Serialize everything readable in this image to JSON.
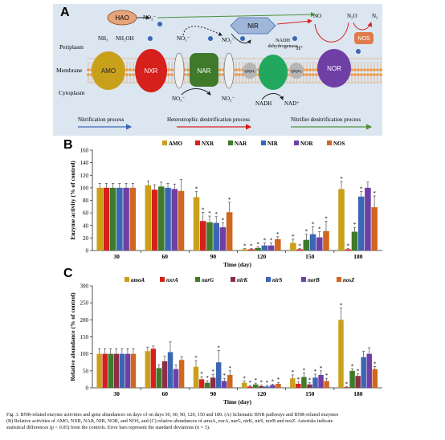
{
  "colors": {
    "AMO": "#c9a01a",
    "NXR": "#d6201c",
    "NAR": "#3f7a2b",
    "NIR": "#3a66b5",
    "NOR": "#6f3fa5",
    "NOS": "#d0661f",
    "panelA_bg": "#dbe6f1",
    "membrane": "#f3a35b"
  },
  "panelA": {
    "label": "A",
    "periplasm": "Periplasm",
    "membrane": "Membrane",
    "cytoplasm": "Cytoplasm",
    "enzymes": {
      "AMO": "AMO",
      "NXR": "NXR",
      "NAR": "NAR",
      "NIR": "NIR",
      "NOR": "NOR",
      "NOS": "NOS",
      "HAO": "HAO",
      "QH2_1": "Q/QH₂",
      "QH2_2": "Q/QH₂"
    },
    "species": {
      "NH3": "NH₃",
      "NH2OH": "NH₂OH",
      "NO2_top": "NO₂⁻",
      "NO3": "NO₃⁻",
      "NO3_cyt": "NO₃⁻",
      "NO2_mid": "NO₂⁻",
      "NO2_cyt": "NO₂⁻",
      "NO": "NO",
      "N2O": "N₂O",
      "N2": "N₂",
      "NADH": "NADH",
      "NAD": "NAD⁺",
      "H": "H⁺",
      "e": "e"
    },
    "nadh_dehydrogenase": "NADH\ndehydrogenase",
    "processes": [
      {
        "label": "Nitrification process",
        "color": "#3a66b5"
      },
      {
        "label": "Heterotrophic denitrification process",
        "color": "#d6201c"
      },
      {
        "label": "Nitrifier denitrification process",
        "color": "#4f8f3a"
      }
    ]
  },
  "panelB": {
    "label": "B"
  },
  "panelC": {
    "label": "C"
  },
  "chart_data": [
    {
      "type": "bar",
      "title": "",
      "xlabel": "Time (day)",
      "ylabel": "Enzyme activity (% of control)",
      "ylim": [
        0,
        160
      ],
      "yticks": [
        0,
        20,
        40,
        60,
        80,
        100,
        120,
        140,
        160
      ],
      "categories": [
        "30",
        "60",
        "90",
        "120",
        "150",
        "180"
      ],
      "legend_position": "top",
      "series": [
        {
          "name": "AMO",
          "color": "#c9a01a",
          "values": [
            100,
            104,
            85,
            2,
            12,
            98
          ],
          "errors": [
            7,
            7,
            9,
            1,
            6,
            12
          ],
          "sig": [
            false,
            false,
            true,
            true,
            true,
            true
          ]
        },
        {
          "name": "NXR",
          "color": "#d6201c",
          "values": [
            100,
            97,
            47,
            2,
            2,
            2
          ],
          "errors": [
            7,
            8,
            14,
            1,
            1,
            1
          ],
          "sig": [
            false,
            false,
            true,
            true,
            true,
            true
          ]
        },
        {
          "name": "NAR",
          "color": "#3f7a2b",
          "values": [
            100,
            102,
            45,
            4,
            17,
            30
          ],
          "errors": [
            7,
            7,
            10,
            2,
            9,
            7
          ],
          "sig": [
            false,
            false,
            true,
            true,
            true,
            true
          ]
        },
        {
          "name": "NIR",
          "color": "#3a66b5",
          "values": [
            100,
            100,
            44,
            8,
            26,
            86
          ],
          "errors": [
            7,
            7,
            10,
            4,
            12,
            8
          ],
          "sig": [
            false,
            false,
            true,
            true,
            true,
            true
          ]
        },
        {
          "name": "NOR",
          "color": "#6f3fa5",
          "values": [
            100,
            98,
            37,
            8,
            21,
            100
          ],
          "errors": [
            7,
            8,
            7,
            4,
            9,
            9
          ],
          "sig": [
            false,
            false,
            true,
            true,
            true,
            false
          ]
        },
        {
          "name": "NOS",
          "color": "#d0661f",
          "values": [
            100,
            95,
            61,
            18,
            31,
            69
          ],
          "errors": [
            7,
            18,
            16,
            4,
            16,
            18
          ],
          "sig": [
            false,
            false,
            true,
            true,
            true,
            true
          ]
        }
      ]
    },
    {
      "type": "bar",
      "title": "",
      "xlabel": "Time (day)",
      "ylabel": "Relative abundance (% of control)",
      "ylim": [
        0,
        300
      ],
      "yticks": [
        0,
        50,
        100,
        150,
        200,
        250,
        300
      ],
      "categories": [
        "30",
        "60",
        "90",
        "120",
        "150",
        "180"
      ],
      "legend_position": "top",
      "series": [
        {
          "name": "amoA",
          "color": "#c9a01a",
          "values": [
            100,
            108,
            62,
            15,
            28,
            200
          ],
          "errors": [
            15,
            12,
            18,
            5,
            10,
            35
          ],
          "sig": [
            false,
            false,
            true,
            true,
            true,
            true
          ]
        },
        {
          "name": "nxrA",
          "color": "#d6201c",
          "values": [
            100,
            115,
            25,
            4,
            12,
            2
          ],
          "errors": [
            15,
            8,
            8,
            3,
            5,
            1
          ],
          "sig": [
            false,
            false,
            true,
            true,
            true,
            true
          ]
        },
        {
          "name": "narG",
          "color": "#3f7a2b",
          "values": [
            100,
            58,
            15,
            10,
            32,
            50
          ],
          "errors": [
            15,
            10,
            6,
            4,
            12,
            6
          ],
          "sig": [
            false,
            false,
            true,
            true,
            true,
            true
          ]
        },
        {
          "name": "nirK",
          "color": "#8a2f45",
          "values": [
            100,
            78,
            30,
            5,
            10,
            35
          ],
          "errors": [
            15,
            15,
            10,
            3,
            5,
            6
          ],
          "sig": [
            false,
            false,
            true,
            true,
            true,
            true
          ]
        },
        {
          "name": "nirS",
          "color": "#3a66b5",
          "values": [
            100,
            105,
            75,
            4,
            30,
            90
          ],
          "errors": [
            15,
            30,
            35,
            3,
            10,
            18
          ],
          "sig": [
            false,
            false,
            true,
            true,
            true,
            false
          ]
        },
        {
          "name": "norB",
          "color": "#6f3fa5",
          "values": [
            100,
            55,
            20,
            8,
            38,
            100
          ],
          "errors": [
            15,
            12,
            8,
            3,
            12,
            18
          ],
          "sig": [
            false,
            false,
            true,
            true,
            true,
            false
          ]
        },
        {
          "name": "nosZ",
          "color": "#d0661f",
          "values": [
            100,
            82,
            38,
            12,
            20,
            55
          ],
          "errors": [
            15,
            10,
            12,
            4,
            8,
            8
          ],
          "sig": [
            false,
            false,
            true,
            true,
            true,
            true
          ]
        }
      ]
    }
  ],
  "caption": {
    "line1": "Fig. 3. BNR-related enzyme activities and gene abundances on days of on days 30, 60, 90, 120, 150 and 180. (A) Schematic BNR pathways and BNR-related enzymes",
    "line2": "(B) Relative activities of AMO, NXR, NAR, NIR, NOR, and NOS, and (C) relative abundances of amoA, nxrA, narG, nirK, nirS, norB and nosZ. Asterisks indicate",
    "line3": "statistical differences (p < 0.05) from the controls. Error bars represent the standard deviations (n = 3)."
  }
}
